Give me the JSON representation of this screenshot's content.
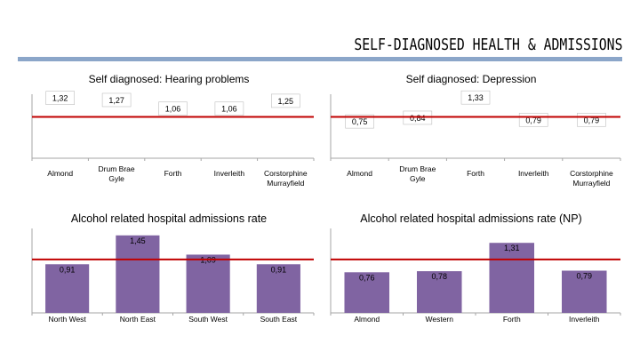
{
  "page": {
    "title": "SELF-DIAGNOSED HEALTH & ADMISSIONS",
    "colors": {
      "bar": "#8064a2",
      "reference_line": "#c00000",
      "title_rule": "#8ba6c9",
      "axis": "#a6a6a6",
      "label_box_border": "#bfbfbf"
    }
  },
  "chart_data": [
    {
      "id": "hearing",
      "type": "bar",
      "title": "Self diagnosed: Hearing problems",
      "categories": [
        "Almond",
        "Drum Brae Gyle",
        "Forth",
        "Inverleith",
        "Corstorphine Murrayfield"
      ],
      "values": [
        1.32,
        1.27,
        1.06,
        1.06,
        1.25
      ],
      "value_labels": [
        "1,32",
        "1,27",
        "1,06",
        "1,06",
        "1,25"
      ],
      "reference_line": 1.0,
      "bars_visible": false,
      "grid": false
    },
    {
      "id": "depression",
      "type": "bar",
      "title": "Self diagnosed: Depression",
      "categories": [
        "Almond",
        "Drum Brae Gyle",
        "Forth",
        "Inverleith",
        "Corstorphine Murrayfield"
      ],
      "values": [
        0.75,
        0.84,
        1.33,
        0.79,
        0.79
      ],
      "value_labels": [
        "0,75",
        "0,84",
        "1,33",
        "0,79",
        "0,79"
      ],
      "reference_line": 1.0,
      "bars_visible": false,
      "grid": false
    },
    {
      "id": "alcohol",
      "type": "bar",
      "title": "Alcohol related hospital admissions rate",
      "categories": [
        "North West",
        "North East",
        "South West",
        "South East"
      ],
      "values": [
        0.91,
        1.45,
        1.09,
        0.91
      ],
      "value_labels": [
        "0,91",
        "1,45",
        "1,09",
        "0,91"
      ],
      "reference_line": 1.0,
      "bars_visible": true,
      "grid": false
    },
    {
      "id": "alcohol_np",
      "type": "bar",
      "title": "Alcohol related hospital admissions rate (NP)",
      "categories": [
        "Almond",
        "Western",
        "Forth",
        "Inverleith"
      ],
      "values": [
        0.76,
        0.78,
        1.31,
        0.79
      ],
      "value_labels": [
        "0,76",
        "0,78",
        "1,31",
        "0,79"
      ],
      "reference_line": 1.0,
      "bars_visible": true,
      "grid": false
    }
  ]
}
